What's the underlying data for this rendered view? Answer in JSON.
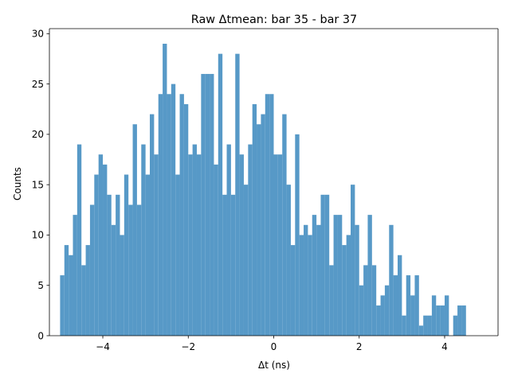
{
  "chart_data": {
    "type": "bar",
    "title": "Raw Δtmean: bar 35 - bar 37",
    "xlabel": "Δt (ns)",
    "ylabel": "Counts",
    "xlim": [
      -5.25,
      5.25
    ],
    "ylim": [
      0,
      30.5
    ],
    "bin_start": -5.0,
    "bin_width": 0.1,
    "x_ticks": [
      -4,
      -2,
      0,
      2,
      4
    ],
    "x_tick_labels": [
      "−4",
      "−2",
      "0",
      "2",
      "4"
    ],
    "y_ticks": [
      0,
      5,
      10,
      15,
      20,
      25,
      30
    ],
    "y_tick_labels": [
      "0",
      "5",
      "10",
      "15",
      "20",
      "25",
      "30"
    ],
    "bar_color": "#5799c7",
    "grid": false,
    "values": [
      6,
      9,
      8,
      12,
      19,
      7,
      9,
      13,
      16,
      18,
      17,
      14,
      11,
      14,
      10,
      16,
      13,
      21,
      13,
      19,
      16,
      22,
      18,
      24,
      29,
      24,
      25,
      16,
      24,
      23,
      18,
      19,
      18,
      26,
      26,
      26,
      17,
      28,
      14,
      19,
      14,
      28,
      18,
      15,
      19,
      23,
      21,
      22,
      24,
      24,
      18,
      18,
      22,
      15,
      9,
      20,
      10,
      11,
      10,
      12,
      11,
      14,
      14,
      7,
      12,
      12,
      9,
      10,
      15,
      11,
      5,
      7,
      12,
      7,
      3,
      4,
      5,
      11,
      6,
      8,
      2,
      6,
      4,
      6,
      1,
      2,
      2,
      4,
      3,
      3,
      4,
      0,
      2,
      3,
      3
    ]
  }
}
